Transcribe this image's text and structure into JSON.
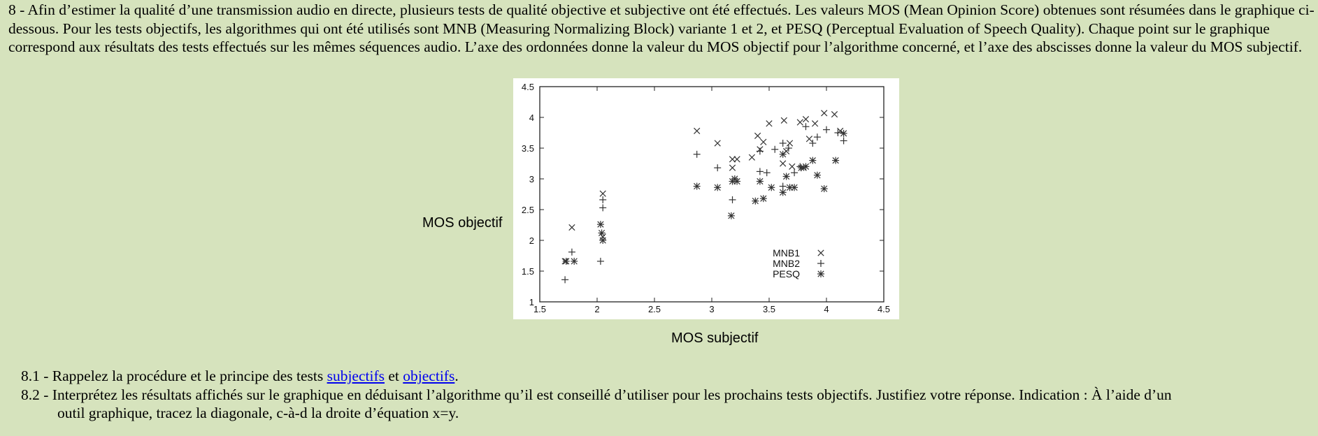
{
  "intro": "8 - Afin d’estimer la qualité d’une transmission audio en directe, plusieurs tests de qualité objective et subjective ont été effectués. Les valeurs MOS (Mean Opinion Score) obtenues sont résumées dans le graphique ci-dessous. Pour les tests objectifs, les algorithmes qui ont été utilisés sont MNB (Measuring Normalizing Block) variante 1 et 2, et PESQ (Perceptual Evaluation of Speech Quality). Chaque point sur le graphique correspond aux résultats des tests effectués sur les mêmes séquences audio. L’axe des ordonnées donne la valeur du MOS objectif pour l’algorithme concerné, et l’axe des abscisses donne la valeur du MOS subjectif.",
  "questions": {
    "q1": {
      "prefix": "8.1 - Rappelez la procédure et le principe des tests ",
      "link1": "subjectifs",
      "mid": " et ",
      "link2": "objectifs",
      "suffix": "."
    },
    "q2": {
      "line1": "8.2 - Interprétez les résultats affichés sur le graphique en déduisant l’algorithme qu’il est conseillé d’utiliser pour les prochains tests objectifs. Justifiez votre réponse. Indication : À l’aide d’un",
      "line2": "outil graphique, tracez la diagonale, c-à-d la droite d’équation x=y."
    }
  },
  "chart_data": {
    "type": "scatter",
    "title": "",
    "xlabel": "MOS subjectif",
    "ylabel": "MOS objectif",
    "xlim": [
      1.5,
      4.5
    ],
    "ylim": [
      1,
      4.5
    ],
    "xticks": [
      "1.5",
      "2",
      "2.5",
      "3",
      "3.5",
      "4",
      "4.5"
    ],
    "yticks": [
      "1",
      "1.5",
      "2",
      "2.5",
      "3",
      "3.5",
      "4",
      "4.5"
    ],
    "grid": false,
    "legend_position": "bottom-right",
    "series": [
      {
        "name": "MNB1",
        "marker": "x",
        "points": [
          [
            1.72,
            1.66
          ],
          [
            1.78,
            2.21
          ],
          [
            2.05,
            2.76
          ],
          [
            2.05,
            2.06
          ],
          [
            2.87,
            3.78
          ],
          [
            3.05,
            3.58
          ],
          [
            3.18,
            3.18
          ],
          [
            3.18,
            3.32
          ],
          [
            3.22,
            3.32
          ],
          [
            3.4,
            3.7
          ],
          [
            3.45,
            3.6
          ],
          [
            3.5,
            3.9
          ],
          [
            3.63,
            3.95
          ],
          [
            3.65,
            3.45
          ],
          [
            3.68,
            3.58
          ],
          [
            3.77,
            3.92
          ],
          [
            3.82,
            3.97
          ],
          [
            3.85,
            3.65
          ],
          [
            3.9,
            3.9
          ],
          [
            3.98,
            4.07
          ],
          [
            4.07,
            4.05
          ],
          [
            4.12,
            3.78
          ],
          [
            3.62,
            3.25
          ],
          [
            3.7,
            3.2
          ],
          [
            3.8,
            3.18
          ],
          [
            3.42,
            3.48
          ],
          [
            3.35,
            3.35
          ]
        ]
      },
      {
        "name": "MNB2",
        "marker": "+",
        "points": [
          [
            1.72,
            1.36
          ],
          [
            1.78,
            1.81
          ],
          [
            2.03,
            1.66
          ],
          [
            2.05,
            2.53
          ],
          [
            2.05,
            2.66
          ],
          [
            2.87,
            3.4
          ],
          [
            3.05,
            3.18
          ],
          [
            3.18,
            2.66
          ],
          [
            3.42,
            3.12
          ],
          [
            3.48,
            3.1
          ],
          [
            3.55,
            3.48
          ],
          [
            3.62,
            3.58
          ],
          [
            3.67,
            3.5
          ],
          [
            3.72,
            3.1
          ],
          [
            3.77,
            3.2
          ],
          [
            3.82,
            3.85
          ],
          [
            3.88,
            3.58
          ],
          [
            3.92,
            3.68
          ],
          [
            4.0,
            3.8
          ],
          [
            4.1,
            3.75
          ],
          [
            4.15,
            3.62
          ],
          [
            3.42,
            3.45
          ],
          [
            3.62,
            2.88
          ]
        ]
      },
      {
        "name": "PESQ",
        "marker": "star",
        "points": [
          [
            1.73,
            1.66
          ],
          [
            1.8,
            1.66
          ],
          [
            2.03,
            2.26
          ],
          [
            2.04,
            2.12
          ],
          [
            2.05,
            2.0
          ],
          [
            2.87,
            2.88
          ],
          [
            3.05,
            2.86
          ],
          [
            3.17,
            2.4
          ],
          [
            3.18,
            2.96
          ],
          [
            3.2,
            3.0
          ],
          [
            3.22,
            2.96
          ],
          [
            3.38,
            2.64
          ],
          [
            3.42,
            2.96
          ],
          [
            3.45,
            2.68
          ],
          [
            3.52,
            2.86
          ],
          [
            3.62,
            2.78
          ],
          [
            3.65,
            3.04
          ],
          [
            3.62,
            3.4
          ],
          [
            3.68,
            2.86
          ],
          [
            3.72,
            2.86
          ],
          [
            3.78,
            3.18
          ],
          [
            3.82,
            3.2
          ],
          [
            3.88,
            3.3
          ],
          [
            3.92,
            3.06
          ],
          [
            3.98,
            2.84
          ],
          [
            4.08,
            3.3
          ],
          [
            4.15,
            3.74
          ]
        ]
      }
    ]
  }
}
